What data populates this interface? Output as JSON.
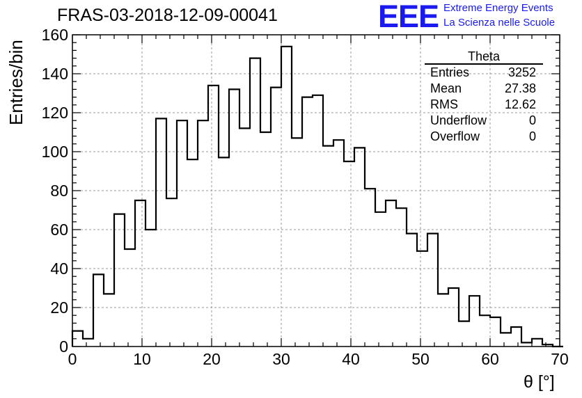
{
  "title": "FRAS-03-2018-12-09-00041",
  "logo": {
    "mark": "EEE",
    "line1": "Extreme Energy Events",
    "line2": "La Scienza nelle Scuole",
    "color": "#1a1af0"
  },
  "stats": {
    "name": "Theta",
    "rows": [
      {
        "label": "Entries",
        "value": "3252"
      },
      {
        "label": "Mean",
        "value": "27.38"
      },
      {
        "label": "RMS",
        "value": "12.62"
      },
      {
        "label": "Underflow",
        "value": "0"
      },
      {
        "label": "Overflow",
        "value": "0"
      }
    ]
  },
  "chart_data": {
    "type": "bar",
    "histogram": true,
    "xlabel": "θ [°]",
    "ylabel": "Entries/bin",
    "xlim": [
      0,
      70
    ],
    "ylim": [
      0,
      160
    ],
    "xticks": [
      0,
      10,
      20,
      30,
      40,
      50,
      60,
      70
    ],
    "yticks": [
      0,
      20,
      40,
      60,
      80,
      100,
      120,
      140,
      160
    ],
    "grid": true,
    "bin_width": 1.5,
    "bin_edges_start": 0,
    "values": [
      8,
      4,
      37,
      27,
      68,
      50,
      75,
      60,
      117,
      76,
      116,
      96,
      116,
      134,
      97,
      132,
      112,
      148,
      110,
      133,
      154,
      107,
      128,
      129,
      103,
      106,
      95,
      102,
      81,
      69,
      75,
      71,
      58,
      49,
      58,
      27,
      30,
      13,
      26,
      16,
      15,
      7,
      10,
      2,
      4,
      1,
      0
    ]
  }
}
